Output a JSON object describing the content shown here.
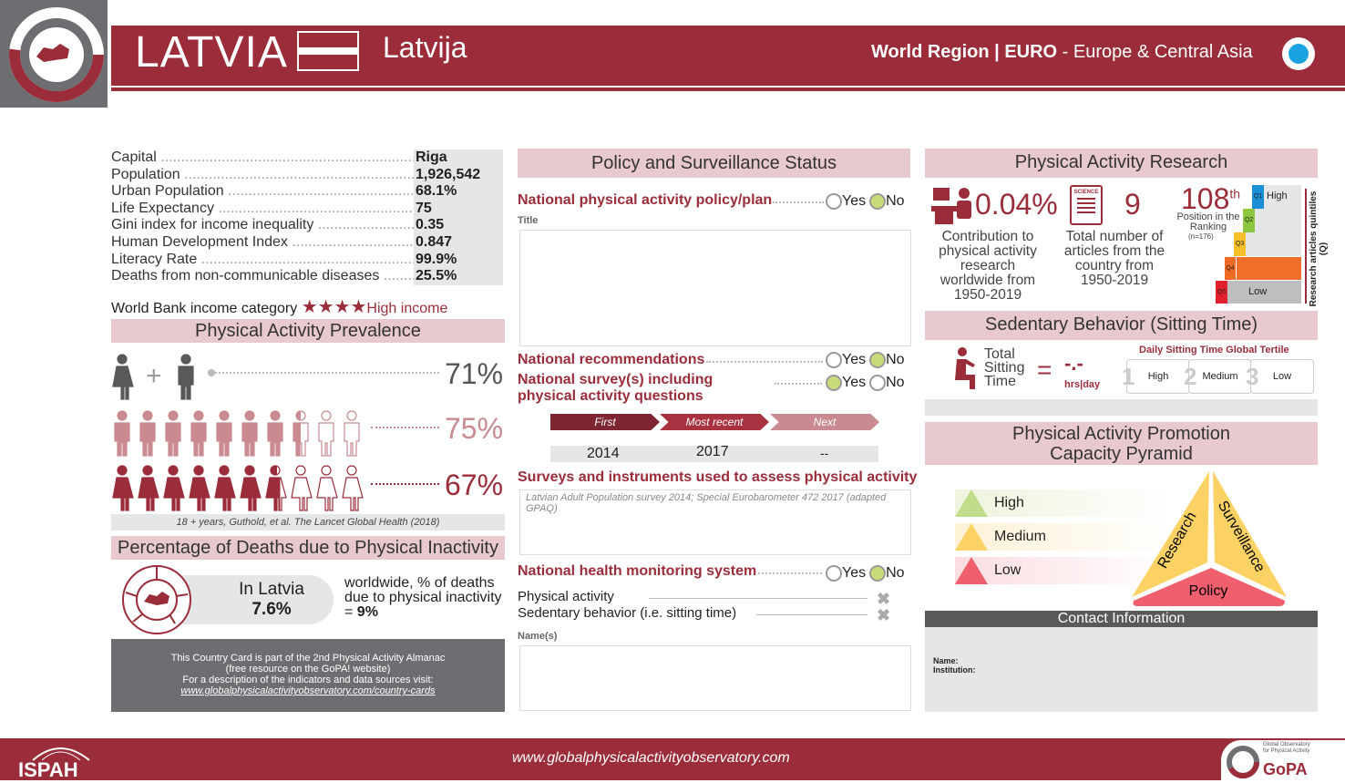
{
  "header": {
    "country": "LATVIA",
    "local_name": "Latvija",
    "region_prefix": "World Region | ",
    "region_code": "EURO",
    "region_name": " - Europe & Central Asia"
  },
  "facts": [
    {
      "label": "Capital",
      "value": "Riga"
    },
    {
      "label": "Population",
      "value": "1,926,542"
    },
    {
      "label": "Urban Population",
      "value": "68.1%"
    },
    {
      "label": "Life Expectancy",
      "value": "75"
    },
    {
      "label": "Gini index for income inequality",
      "value": "0.35"
    },
    {
      "label": "Human Development Index",
      "value": "0.847"
    },
    {
      "label": "Literacy Rate",
      "value": "99.9%"
    },
    {
      "label": "Deaths from non-communicable diseases",
      "value": "25.5%"
    }
  ],
  "income": {
    "label": "World Bank income category",
    "value": "High income",
    "stars": 4
  },
  "prevalence": {
    "title": "Physical Activity Prevalence",
    "overall": "71%",
    "men": "75%",
    "women": "67%",
    "men_value": 75,
    "women_value": 67,
    "source": "18 + years, Guthold, et al. The Lancet Global Health (2018)"
  },
  "deaths": {
    "title": "Percentage of Deaths due to Physical Inactivity",
    "in_label": "In Latvia",
    "in_value": "7.6%",
    "world_text": "worldwide, % of deaths due to physical inactivity = ",
    "world_value": "9%"
  },
  "note": {
    "line1": "This Country Card is part of the 2nd Physical Activity Almanac",
    "line2": "(free resource on the GoPA! website)",
    "line3": "For a description of the indicators and data sources visit:",
    "link": "www.globalphysicalactivityobservatory.com/country-cards"
  },
  "policy": {
    "title": "Policy and Surveillance Status",
    "yes": "Yes",
    "no": "No",
    "plan_label": "National physical activity policy/plan",
    "plan_answer": "No",
    "title_label": "Title",
    "rec_label": "National recommendations",
    "rec_answer": "No",
    "survey_label": "National survey(s) including physical activity questions",
    "survey_answer": "Yes",
    "timeline": [
      {
        "label": "First",
        "year": "2014"
      },
      {
        "label": "Most recent",
        "year": "2017"
      },
      {
        "label": "Next",
        "year": "--"
      }
    ],
    "instruments_label": "Surveys and instruments used to assess physical activity",
    "instruments": "Latvian Adult Population survey 2014; Special Eurobarometer 472 2017 (adapted GPAQ)",
    "monitor_label": "National health monitoring system",
    "monitor_answer": "No",
    "monitor_items": [
      "Physical activity",
      "Sedentary behavior (i.e. sitting time)"
    ],
    "names_label": "Name(s)"
  },
  "research": {
    "title": "Physical Activity Research",
    "contribution": "0.04%",
    "contribution_label": "Contribution to physical activity research worldwide from 1950-2019",
    "articles": "9",
    "articles_label": "Total number of articles from the country from 1950-2019",
    "science": "SCIENCE",
    "rank": "108",
    "rank_sup": "th",
    "rank_label": "Position in the Ranking",
    "rank_n": "(n=176)",
    "quintiles": [
      "Q1",
      "Q2",
      "Q3",
      "Q4",
      "Q5"
    ],
    "high": "High",
    "low": "Low",
    "axis": "Research articles quintiles (Q)",
    "current_quintile": "Q4"
  },
  "sedentary": {
    "title": "Sedentary Behavior (Sitting Time)",
    "label": "Total Sitting Time",
    "eq": "=",
    "value": "-.-",
    "unit": "hrs|day",
    "tertile_title": "Daily Sitting Time Global Tertile",
    "tertiles": [
      {
        "n": "1",
        "label": "High"
      },
      {
        "n": "2",
        "label": "Medium"
      },
      {
        "n": "3",
        "label": "Low"
      }
    ]
  },
  "pyramid": {
    "title": "Physical Activity Promotion Capacity Pyramid",
    "levels": [
      "High",
      "Medium",
      "Low"
    ],
    "sides": {
      "research": "Research",
      "surveillance": "Surveillance",
      "policy": "Policy"
    }
  },
  "contact": {
    "title": "Contact Information",
    "name": "Name:",
    "institution": "Institution:"
  },
  "footer": {
    "url": "www.globalphysicalactivityobservatory.com",
    "ispah": "ISPAH",
    "gopa": "GoPA",
    "gopa_sub": "Global Observatory for Physical Activity"
  },
  "colors": {
    "brand": "#9b2d3a",
    "pink": "#e8c9ce",
    "gray": "#e5e6e8",
    "yes": "#c8dc7a",
    "region_dot": "#1aa3e0"
  }
}
